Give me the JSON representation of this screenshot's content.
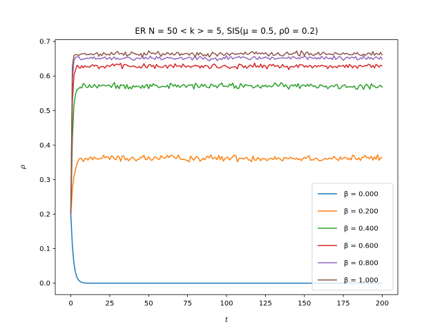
{
  "chart_data": {
    "type": "line",
    "title": "ER N = 50 < k > = 5, SIS(μ = 0.5, ρ0 = 0.2)",
    "xlabel": "t",
    "ylabel": "ρ",
    "xlim": [
      -10,
      210
    ],
    "ylim": [
      -0.033,
      0.705
    ],
    "xticks": [
      0,
      25,
      50,
      75,
      100,
      125,
      150,
      175,
      200
    ],
    "yticks": [
      0.0,
      0.1,
      0.2,
      0.3,
      0.4,
      0.5,
      0.6,
      0.7
    ],
    "grid": false,
    "legend_position": "lower-right",
    "initial_rho": 0.2,
    "series": [
      {
        "name": "β = 0.000",
        "color": "#1f77b4",
        "steady_state": 0.0,
        "amplitude": 0.0,
        "tau": 1.6
      },
      {
        "name": "β = 0.200",
        "color": "#ff7f0e",
        "steady_state": 0.362,
        "amplitude": 0.009,
        "tau": 1.8
      },
      {
        "name": "β = 0.400",
        "color": "#2ca02c",
        "steady_state": 0.571,
        "amplitude": 0.008,
        "tau": 1.1
      },
      {
        "name": "β = 0.600",
        "color": "#d62728",
        "steady_state": 0.628,
        "amplitude": 0.007,
        "tau": 0.7
      },
      {
        "name": "β = 0.800",
        "color": "#9467bd",
        "steady_state": 0.652,
        "amplitude": 0.006,
        "tau": 0.5
      },
      {
        "name": "β = 1.000",
        "color": "#8c564b",
        "steady_state": 0.664,
        "amplitude": 0.007,
        "tau": 0.4
      }
    ]
  }
}
